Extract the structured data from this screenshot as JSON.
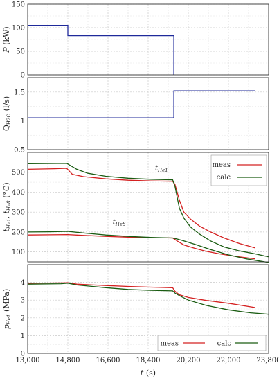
{
  "chart_data": [
    {
      "type": "line",
      "ylabel": "P (kW)",
      "xlim": [
        13000,
        23800
      ],
      "ylim": [
        0,
        150
      ],
      "yticks": [
        "0",
        "50",
        "100",
        "150"
      ],
      "grid": true,
      "series": [
        {
          "color": "#1f2a9a",
          "step": true,
          "points": [
            [
              13000,
              105
            ],
            [
              14800,
              105
            ],
            [
              14800,
              83
            ],
            [
              19550,
              83
            ],
            [
              19550,
              0
            ]
          ]
        }
      ]
    },
    {
      "type": "line",
      "ylabel": "Q_H2O (l/s)",
      "xlim": [
        13000,
        23800
      ],
      "ylim": [
        0.5,
        1.75
      ],
      "yticks": [
        "0.5",
        "1",
        "1.5"
      ],
      "grid": true,
      "series": [
        {
          "color": "#1f2a9a",
          "step": true,
          "points": [
            [
              13000,
              1.05
            ],
            [
              19550,
              1.05
            ],
            [
              19550,
              1.52
            ],
            [
              23200,
              1.52
            ]
          ]
        }
      ]
    },
    {
      "type": "line",
      "ylabel": "t_He1, t_He8 (°C)",
      "xlim": [
        13000,
        23800
      ],
      "ylim": [
        50,
        600
      ],
      "yticks": [
        "100",
        "200",
        "300",
        "400",
        "500"
      ],
      "grid": true,
      "legend": "top-right",
      "annotations": [
        {
          "text": "t_He1",
          "x": 19000,
          "y": 510
        },
        {
          "text": "t_He8",
          "x": 17100,
          "y": 238
        }
      ],
      "series": [
        {
          "name": "meas",
          "color": "#d42020",
          "points": [
            [
              13000,
              515
            ],
            [
              14200,
              518
            ],
            [
              14750,
              520
            ],
            [
              14850,
              508
            ],
            [
              15000,
              490
            ],
            [
              15500,
              478
            ],
            [
              16500,
              467
            ],
            [
              17500,
              460
            ],
            [
              18500,
              457
            ],
            [
              19500,
              455
            ],
            [
              19600,
              440
            ],
            [
              19800,
              360
            ],
            [
              20000,
              300
            ],
            [
              20300,
              265
            ],
            [
              20700,
              230
            ],
            [
              21200,
              200
            ],
            [
              21800,
              170
            ],
            [
              22500,
              142
            ],
            [
              23200,
              120
            ]
          ]
        },
        {
          "name": "calc",
          "color": "#1a5c12",
          "points": [
            [
              13000,
              543
            ],
            [
              14750,
              545
            ],
            [
              14900,
              535
            ],
            [
              15200,
              515
            ],
            [
              15700,
              495
            ],
            [
              16500,
              480
            ],
            [
              17500,
              470
            ],
            [
              18500,
              465
            ],
            [
              19500,
              462
            ],
            [
              19600,
              430
            ],
            [
              19800,
              320
            ],
            [
              20000,
              270
            ],
            [
              20300,
              225
            ],
            [
              20700,
              190
            ],
            [
              21200,
              155
            ],
            [
              21800,
              125
            ],
            [
              22500,
              105
            ],
            [
              23200,
              90
            ],
            [
              23800,
              75
            ]
          ]
        },
        {
          "color": "#d42020",
          "points": [
            [
              13000,
              185
            ],
            [
              14000,
              186
            ],
            [
              14800,
              187
            ],
            [
              15500,
              183
            ],
            [
              16500,
              178
            ],
            [
              17500,
              174
            ],
            [
              18500,
              172
            ],
            [
              19500,
              170
            ],
            [
              19700,
              155
            ],
            [
              20000,
              135
            ],
            [
              20500,
              118
            ],
            [
              21000,
              103
            ],
            [
              21600,
              90
            ],
            [
              22300,
              78
            ],
            [
              23200,
              65
            ]
          ]
        },
        {
          "color": "#1a5c12",
          "points": [
            [
              13000,
              200
            ],
            [
              14000,
              201
            ],
            [
              14800,
              203
            ],
            [
              15500,
              195
            ],
            [
              16500,
              185
            ],
            [
              17500,
              178
            ],
            [
              18500,
              173
            ],
            [
              19500,
              170
            ],
            [
              19700,
              165
            ],
            [
              20000,
              155
            ],
            [
              20500,
              138
            ],
            [
              21200,
              112
            ],
            [
              22000,
              85
            ],
            [
              22800,
              65
            ],
            [
              23800,
              47
            ]
          ]
        }
      ]
    },
    {
      "type": "line",
      "ylabel": "p_He1 (MPa)",
      "xlabel": "t (s)",
      "xlim": [
        13000,
        23800
      ],
      "ylim": [
        0,
        5
      ],
      "xticks": [
        "13,000",
        "14,800",
        "16,600",
        "18,400",
        "20,200",
        "22,000",
        "23,800"
      ],
      "yticks": [
        "0",
        "1",
        "2",
        "3",
        "4"
      ],
      "grid": true,
      "legend": "bottom",
      "series": [
        {
          "name": "meas",
          "color": "#d42020",
          "points": [
            [
              13000,
              3.95
            ],
            [
              14500,
              3.97
            ],
            [
              14800,
              3.98
            ],
            [
              15200,
              3.9
            ],
            [
              16500,
              3.82
            ],
            [
              17500,
              3.77
            ],
            [
              18500,
              3.73
            ],
            [
              19500,
              3.7
            ],
            [
              19600,
              3.5
            ],
            [
              19800,
              3.3
            ],
            [
              20200,
              3.15
            ],
            [
              21000,
              2.98
            ],
            [
              22000,
              2.82
            ],
            [
              23200,
              2.58
            ]
          ]
        },
        {
          "name": "calc",
          "color": "#1a5c12",
          "points": [
            [
              13000,
              3.9
            ],
            [
              14500,
              3.92
            ],
            [
              14800,
              3.95
            ],
            [
              15200,
              3.85
            ],
            [
              16500,
              3.7
            ],
            [
              17500,
              3.6
            ],
            [
              18500,
              3.55
            ],
            [
              19500,
              3.52
            ],
            [
              19600,
              3.4
            ],
            [
              19800,
              3.25
            ],
            [
              20200,
              3.0
            ],
            [
              21000,
              2.7
            ],
            [
              22000,
              2.45
            ],
            [
              23000,
              2.28
            ],
            [
              23800,
              2.2
            ]
          ]
        }
      ]
    }
  ]
}
